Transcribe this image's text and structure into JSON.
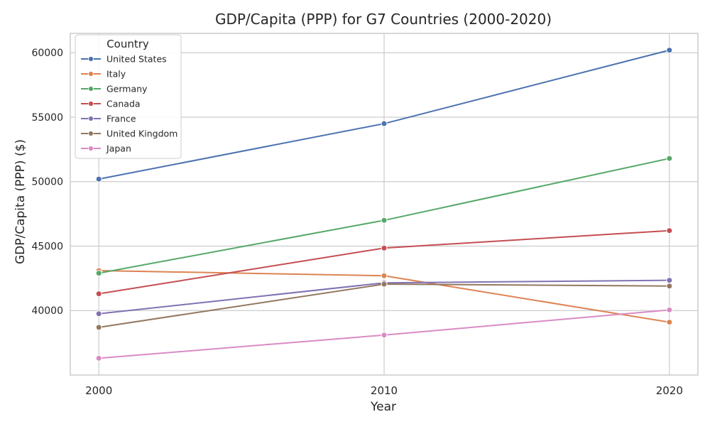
{
  "chart_data": {
    "type": "line",
    "title": "GDP/Capita (PPP) for G7 Countries (2000-2020)",
    "xlabel": "Year",
    "ylabel": "GDP/Capita (PPP) ($)",
    "x": [
      2000,
      2010,
      2020
    ],
    "xlim": [
      1999,
      2021
    ],
    "ylim": [
      35000,
      61500
    ],
    "yticks": [
      40000,
      45000,
      50000,
      55000,
      60000
    ],
    "grid": true,
    "legend": {
      "title": "Country",
      "placement": "top-left"
    },
    "series": [
      {
        "name": "United States",
        "color": "#4c72b0",
        "values": [
          50200,
          54500,
          60200
        ]
      },
      {
        "name": "Italy",
        "color": "#dd8452",
        "values": [
          43100,
          42700,
          39100
        ]
      },
      {
        "name": "Germany",
        "color": "#55a868",
        "values": [
          42900,
          47000,
          51800
        ]
      },
      {
        "name": "Canada",
        "color": "#c44e52",
        "values": [
          41300,
          44850,
          46200
        ]
      },
      {
        "name": "France",
        "color": "#8172b3",
        "values": [
          39750,
          42150,
          42350
        ]
      },
      {
        "name": "United Kingdom",
        "color": "#937860",
        "values": [
          38700,
          42050,
          41900
        ]
      },
      {
        "name": "Japan",
        "color": "#da8bc3",
        "values": [
          36300,
          38100,
          40050
        ]
      }
    ]
  }
}
